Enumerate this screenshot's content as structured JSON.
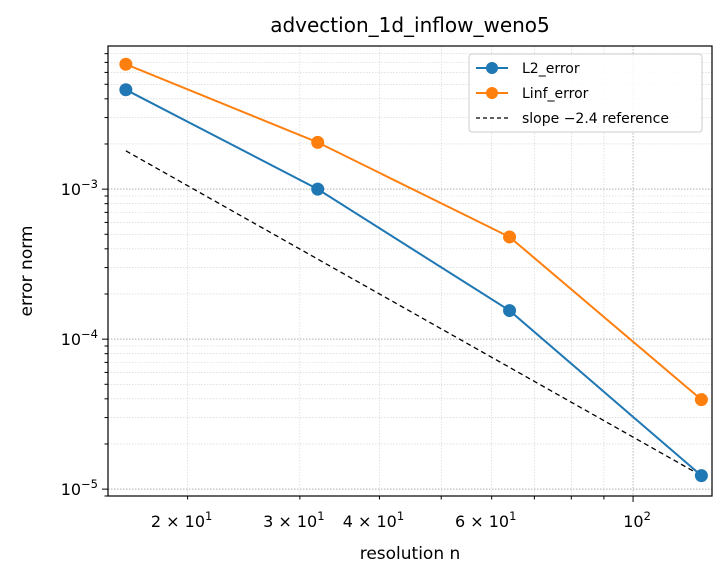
{
  "chart_data": {
    "type": "line",
    "title": "advection_1d_inflow_weno5",
    "xlabel": "resolution n",
    "ylabel": "error norm",
    "xscale": "log",
    "yscale": "log",
    "xlim": [
      15,
      133
    ],
    "ylim": [
      9e-06,
      0.009
    ],
    "grid": "on (major and minor, dotted)",
    "legend_position": "top-right",
    "x": [
      16,
      32,
      64,
      128
    ],
    "series": [
      {
        "name": "L2_error",
        "values": [
          0.0046,
          0.001,
          0.000155,
          1.23e-05
        ],
        "color": "#1f77b4",
        "marker": "circle",
        "style": "solid"
      },
      {
        "name": "Linf_error",
        "values": [
          0.0068,
          0.00205,
          0.00048,
          3.95e-05
        ],
        "color": "#ff7f0e",
        "marker": "circle",
        "style": "solid"
      }
    ],
    "reference": {
      "name": "slope −2.4 reference",
      "x": [
        16,
        128
      ],
      "values": [
        0.0018,
        1.23e-05
      ],
      "color": "#000000",
      "style": "dashed"
    },
    "xticks": [
      {
        "value": 20,
        "base": "2 × 10",
        "exp": "1"
      },
      {
        "value": 30,
        "base": "3 × 10",
        "exp": "1"
      },
      {
        "value": 40,
        "base": "4 × 10",
        "exp": "1"
      },
      {
        "value": 60,
        "base": "6 × 10",
        "exp": "1"
      },
      {
        "value": 100,
        "base": "10",
        "exp": "2"
      }
    ],
    "yticks": [
      {
        "value": 1e-05,
        "base": "10",
        "exp": "−5"
      },
      {
        "value": 0.0001,
        "base": "10",
        "exp": "−4"
      },
      {
        "value": 0.001,
        "base": "10",
        "exp": "−3"
      }
    ]
  }
}
